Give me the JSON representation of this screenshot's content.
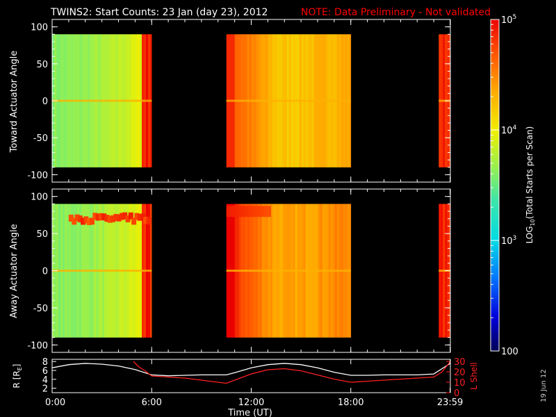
{
  "header": {
    "title": "TWINS2: Start Counts: 23 Jan (day  23), 2012",
    "note": "NOTE: Data Preliminary - Not validated"
  },
  "stamp": "19 Jun 12",
  "colors": {
    "note": "#ff0000",
    "background": "#000000",
    "axis": "#ffffff",
    "lshell": "#ff2020",
    "r_line": "#ffffff"
  },
  "colorbar": {
    "label_pre": "LOG",
    "label_sub": "10",
    "label_post": "(Total Starts per Scan)",
    "ticks": [
      {
        "value": 100,
        "text": "100"
      },
      {
        "value": 1000,
        "text": "10",
        "exp": "3"
      },
      {
        "value": 10000,
        "text": "10",
        "exp": "4"
      },
      {
        "value": 100000,
        "text": "10",
        "exp": "5"
      }
    ],
    "log_range": [
      2,
      5
    ]
  },
  "chart_data": [
    {
      "type": "heatmap",
      "ylabel": "Toward Actuator Angle",
      "ylim": [
        -110,
        110
      ],
      "yticks": [
        100,
        50,
        0,
        -50,
        -100
      ],
      "data_range_y": [
        -90,
        90
      ],
      "data_segments_hours": [
        [
          0,
          6.0
        ],
        [
          10.5,
          18.0
        ],
        [
          23.3,
          24.0
        ]
      ],
      "log_counts_typical": {
        "first": 3.6,
        "second": 4.2,
        "third_edge": 4.9
      }
    },
    {
      "type": "heatmap",
      "ylabel": "Away Actuator Angle",
      "ylim": [
        -110,
        110
      ],
      "yticks": [
        100,
        50,
        0,
        -50,
        -100
      ],
      "data_range_y": [
        -90,
        90
      ],
      "data_segments_hours": [
        [
          0,
          6.0
        ],
        [
          10.5,
          18.0
        ],
        [
          23.3,
          24.0
        ]
      ],
      "log_counts_typical": {
        "first": 3.6,
        "second": 4.5,
        "third_edge": 4.9
      }
    },
    {
      "type": "line",
      "ylabel_left": "R [R",
      "ylabel_left_sub": "E",
      "ylabel_left_end": "]",
      "ylabel_right": "L Shell",
      "yticks_left": [
        8,
        6,
        4,
        2
      ],
      "yticks_right": [
        30,
        20,
        10,
        0
      ],
      "xlabel": "Time (UT)",
      "xticks": [
        "0:00",
        "6:00",
        "12:00",
        "18:00",
        "23:59"
      ],
      "xticks_hours": [
        0,
        6,
        12,
        18,
        23.983
      ],
      "series": [
        {
          "name": "R",
          "x": [
            0,
            1,
            2,
            3,
            4,
            5,
            6,
            7,
            8,
            9,
            10,
            10.5,
            11,
            12,
            13,
            14,
            15,
            16,
            17,
            18,
            19,
            20,
            21,
            22,
            23,
            24
          ],
          "y": [
            6.6,
            7.3,
            7.6,
            7.4,
            7.0,
            6.2,
            5.0,
            4.8,
            4.9,
            5.0,
            5.0,
            5.0,
            5.5,
            6.6,
            7.3,
            7.6,
            7.3,
            6.6,
            5.6,
            4.9,
            4.9,
            5.0,
            5.0,
            5.0,
            5.2,
            7.6
          ]
        },
        {
          "name": "L Shell",
          "x": [
            4.9,
            5.2,
            5.6,
            6.0,
            7,
            8,
            9,
            10,
            10.5,
            11,
            12,
            13,
            14,
            15,
            16,
            17,
            18,
            19,
            20,
            21,
            22,
            23,
            23.5,
            24
          ],
          "y": [
            30,
            25,
            21,
            16,
            15,
            14,
            12,
            10,
            9,
            12,
            18,
            22,
            23,
            21,
            17,
            13,
            10,
            11,
            12,
            13,
            14,
            15,
            20,
            30
          ]
        }
      ]
    }
  ]
}
